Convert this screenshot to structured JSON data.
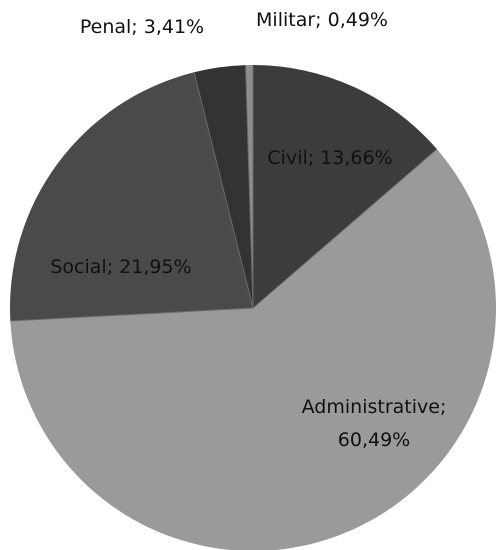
{
  "chart_data": {
    "type": "pie",
    "title": "",
    "categories": [
      "Civil",
      "Administrative",
      "Social",
      "Penal",
      "Militar"
    ],
    "values": [
      13.66,
      60.49,
      21.95,
      3.41,
      0.49
    ],
    "unit": "%",
    "labels": [
      [
        "Civil; 13,66%"
      ],
      [
        "Administrative;",
        "60,49%"
      ],
      [
        "Social; 21,95%"
      ],
      [
        "Penal; 3,41%"
      ],
      [
        "Militar;  0,49%"
      ]
    ],
    "colors": [
      "#3c3c3c",
      "#9a9a9a",
      "#4a4a4a",
      "#333333",
      "#8e8e8e"
    ],
    "start_angle": "12 o'clock",
    "direction": "clockwise",
    "legend": "none"
  }
}
